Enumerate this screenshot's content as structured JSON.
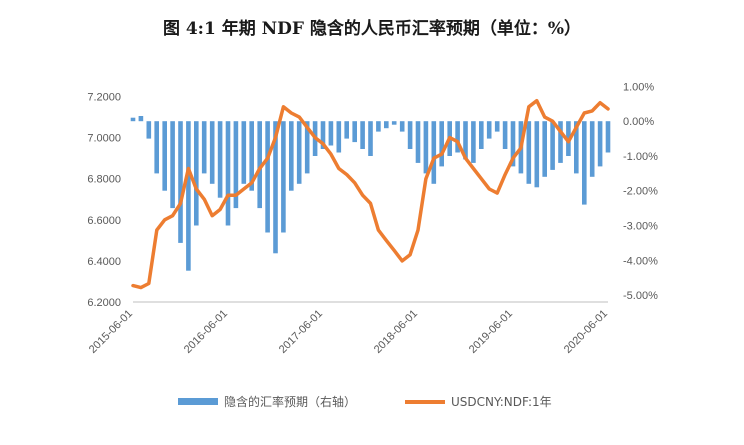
{
  "chart_data": {
    "type": "bar+line",
    "title": "图 4:1 年期 NDF 隐含的人民币汇率预期（单位：%）",
    "x_tick_labels": [
      "2015-06-01",
      "2016-06-01",
      "2017-06-01",
      "2018-06-01",
      "2019-06-01",
      "2020-06-01"
    ],
    "left_axis": {
      "range": [
        6.2,
        7.3
      ],
      "ticks": [
        "6.2000",
        "6.4000",
        "6.6000",
        "6.8000",
        "7.0000",
        "7.2000"
      ]
    },
    "right_axis": {
      "range": [
        -5.2,
        1.3
      ],
      "ticks": [
        "-5.00%",
        "-4.00%",
        "-3.00%",
        "-2.00%",
        "-1.00%",
        "0.00%",
        "1.00%"
      ]
    },
    "grid": false,
    "legend_position": "bottom",
    "series": [
      {
        "name": "隐含的汇率预期（右轴）",
        "kind": "bar",
        "axis": "right",
        "color": "#5B9BD5",
        "x": [
          "2015-06",
          "2015-07",
          "2015-08",
          "2015-09",
          "2015-10",
          "2015-11",
          "2015-12",
          "2016-01",
          "2016-02",
          "2016-03",
          "2016-04",
          "2016-05",
          "2016-06",
          "2016-07",
          "2016-08",
          "2016-09",
          "2016-10",
          "2016-11",
          "2016-12",
          "2017-01",
          "2017-02",
          "2017-03",
          "2017-04",
          "2017-05",
          "2017-06",
          "2017-07",
          "2017-08",
          "2017-09",
          "2017-10",
          "2017-11",
          "2017-12",
          "2018-01",
          "2018-02",
          "2018-03",
          "2018-04",
          "2018-05",
          "2018-06",
          "2018-07",
          "2018-08",
          "2018-09",
          "2018-10",
          "2018-11",
          "2018-12",
          "2019-01",
          "2019-02",
          "2019-03",
          "2019-04",
          "2019-05",
          "2019-06",
          "2019-07",
          "2019-08",
          "2019-09",
          "2019-10",
          "2019-11",
          "2019-12",
          "2020-01",
          "2020-02",
          "2020-03",
          "2020-04",
          "2020-05",
          "2020-06"
        ],
        "values": [
          0.1,
          0.15,
          -0.5,
          -1.5,
          -2.0,
          -2.5,
          -3.5,
          -4.3,
          -3.0,
          -1.5,
          -1.8,
          -2.2,
          -3.0,
          -2.5,
          -1.8,
          -2.0,
          -2.5,
          -3.2,
          -3.8,
          -3.2,
          -2.0,
          -1.8,
          -1.5,
          -1.0,
          -0.8,
          -0.7,
          -0.9,
          -0.5,
          -0.6,
          -0.8,
          -1.0,
          -0.3,
          -0.2,
          -0.1,
          -0.3,
          -0.8,
          -1.2,
          -1.5,
          -1.8,
          -1.3,
          -1.0,
          -0.9,
          -1.1,
          -1.2,
          -0.8,
          -0.5,
          -0.3,
          -0.8,
          -1.3,
          -1.5,
          -1.8,
          -1.9,
          -1.6,
          -1.4,
          -1.2,
          -1.0,
          -1.5,
          -2.4,
          -1.6,
          -1.3,
          -0.9
        ]
      },
      {
        "name": "USDCNY:NDF:1年",
        "kind": "line",
        "axis": "left",
        "color": "#ED7D31",
        "x": [
          "2015-06",
          "2015-07",
          "2015-08",
          "2015-09",
          "2015-10",
          "2015-11",
          "2015-12",
          "2016-01",
          "2016-02",
          "2016-03",
          "2016-04",
          "2016-05",
          "2016-06",
          "2016-07",
          "2016-08",
          "2016-09",
          "2016-10",
          "2016-11",
          "2016-12",
          "2017-01",
          "2017-02",
          "2017-03",
          "2017-04",
          "2017-05",
          "2017-06",
          "2017-07",
          "2017-08",
          "2017-09",
          "2017-10",
          "2017-11",
          "2017-12",
          "2018-01",
          "2018-02",
          "2018-03",
          "2018-04",
          "2018-05",
          "2018-06",
          "2018-07",
          "2018-08",
          "2018-09",
          "2018-10",
          "2018-11",
          "2018-12",
          "2019-01",
          "2019-02",
          "2019-03",
          "2019-04",
          "2019-05",
          "2019-06",
          "2019-07",
          "2019-08",
          "2019-09",
          "2019-10",
          "2019-11",
          "2019-12",
          "2020-01",
          "2020-02",
          "2020-03",
          "2020-04",
          "2020-05",
          "2020-06"
        ],
        "values": [
          6.28,
          6.27,
          6.29,
          6.55,
          6.6,
          6.62,
          6.68,
          6.85,
          6.75,
          6.7,
          6.62,
          6.65,
          6.72,
          6.72,
          6.75,
          6.78,
          6.85,
          6.9,
          7.0,
          7.15,
          7.12,
          7.1,
          7.05,
          7.0,
          6.97,
          6.92,
          6.85,
          6.82,
          6.78,
          6.72,
          6.68,
          6.55,
          6.5,
          6.45,
          6.4,
          6.43,
          6.55,
          6.8,
          6.9,
          6.92,
          7.0,
          6.98,
          6.9,
          6.85,
          6.8,
          6.75,
          6.73,
          6.82,
          6.9,
          6.95,
          7.15,
          7.18,
          7.1,
          7.08,
          7.03,
          6.98,
          7.05,
          7.12,
          7.13,
          7.17,
          7.14
        ]
      }
    ]
  }
}
